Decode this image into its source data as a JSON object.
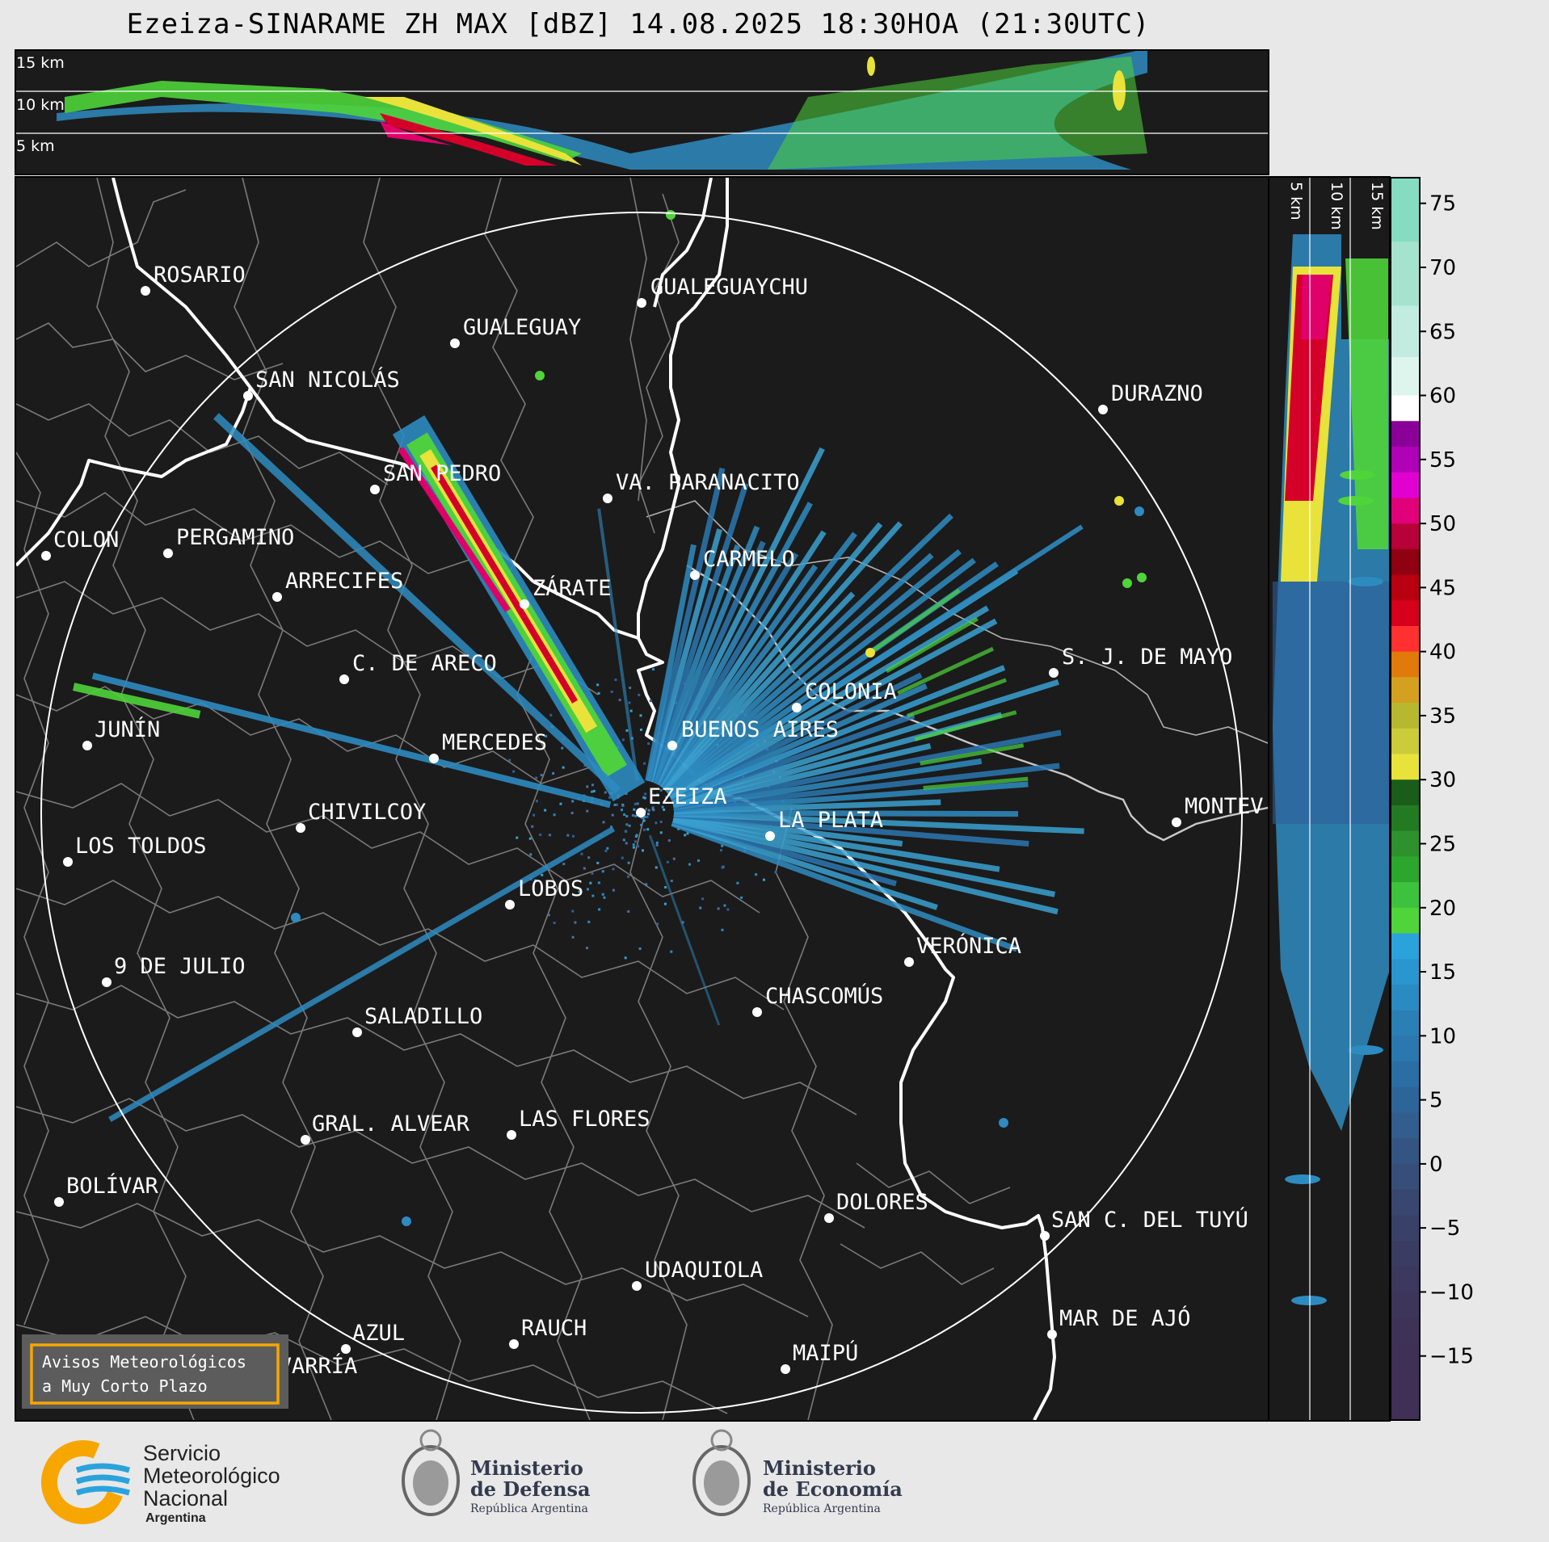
{
  "title": "Ezeiza-SINARAME ZH MAX [dBZ] 14.08.2025 18:30HOA (21:30UTC)",
  "top_panel": {
    "height_labels": [
      "15 km",
      "10 km",
      "5 km"
    ]
  },
  "side_panel": {
    "height_labels": [
      "5 km",
      "10 km",
      "15 km"
    ]
  },
  "colorbar": {
    "ticks": [
      "75",
      "70",
      "65",
      "60",
      "55",
      "50",
      "45",
      "40",
      "35",
      "30",
      "25",
      "20",
      "15",
      "10",
      "5",
      "0",
      "−5",
      "−10",
      "−15"
    ],
    "range_dbz": [
      -20,
      77
    ]
  },
  "radar_site": "EZEIZA",
  "cities": [
    {
      "name": "ROSARIO"
    },
    {
      "name": "GUALEGUAYCHU"
    },
    {
      "name": "GUALEGUAY"
    },
    {
      "name": "SAN NICOLÁS"
    },
    {
      "name": "DURAZNO"
    },
    {
      "name": "SAN PEDRO"
    },
    {
      "name": "VA. PARANACITO"
    },
    {
      "name": "COLON"
    },
    {
      "name": "PERGAMINO"
    },
    {
      "name": "CARMELO"
    },
    {
      "name": "ARRECIFES"
    },
    {
      "name": "ZÁRATE"
    },
    {
      "name": "S. J. DE MAYO"
    },
    {
      "name": "C. DE ARECO"
    },
    {
      "name": "COLONIA"
    },
    {
      "name": "BUENOS AIRES"
    },
    {
      "name": "JUNÍN"
    },
    {
      "name": "MERCEDES"
    },
    {
      "name": "EZEIZA"
    },
    {
      "name": "MONTEV"
    },
    {
      "name": "CHIVILCOY"
    },
    {
      "name": "LA PLATA"
    },
    {
      "name": "LOS TOLDOS"
    },
    {
      "name": "LOBOS"
    },
    {
      "name": "VERÓNICA"
    },
    {
      "name": "9 DE JULIO"
    },
    {
      "name": "CHASCOMÚS"
    },
    {
      "name": "SALADILLO"
    },
    {
      "name": "GRAL. ALVEAR"
    },
    {
      "name": "LAS FLORES"
    },
    {
      "name": "BOLÍVAR"
    },
    {
      "name": "DOLORES"
    },
    {
      "name": "SAN C. DEL TUYÚ"
    },
    {
      "name": "UDAQUIOLA"
    },
    {
      "name": "AZUL"
    },
    {
      "name": "RAUCH"
    },
    {
      "name": "MAR DE AJÓ"
    },
    {
      "name": "MAIPÚ"
    },
    {
      "name": "OLAVARRÍA"
    }
  ],
  "warning_box": [
    "Avisos Meteorológicos",
    "a Muy Corto Plazo"
  ],
  "logos": {
    "smn": [
      "Servicio",
      "Meteorológico",
      "Nacional",
      "Argentina"
    ],
    "defensa": [
      "Ministerio",
      "de Defensa",
      "República Argentina"
    ],
    "economia": [
      "Ministerio",
      "de Economía",
      "República Argentina"
    ]
  },
  "colors": {
    "background": "#1b1b1b",
    "boundaries": "#808080",
    "coast": "#ffffff",
    "warning_border": "#f7a600",
    "smn_yellow": "#f7a600",
    "smn_blue": "#2aa3dc"
  }
}
